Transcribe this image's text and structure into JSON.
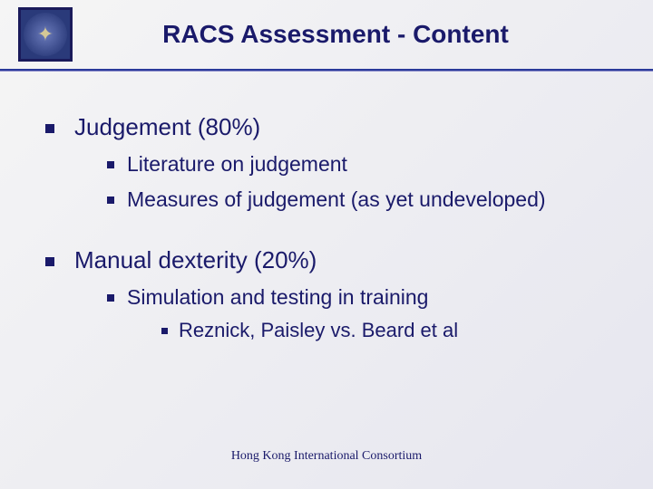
{
  "slide": {
    "title": "RACS Assessment - Content",
    "title_fontsize": 28,
    "title_color": "#1a1a6a",
    "divider_color": "#2a3a9a",
    "background_gradient": [
      "#f5f5f5",
      "#e6e6ef"
    ],
    "bullets": {
      "level1_size": 10,
      "level2_size": 8,
      "level3_size": 7,
      "color": "#1a1a6a"
    },
    "text_colors": {
      "level1": "#1a1a6a",
      "level2": "#1a1a6a",
      "level3": "#1a1a6a"
    },
    "font_sizes": {
      "level1": 26,
      "level2": 23,
      "level3": 22
    },
    "items": [
      {
        "label": "Judgement (80%)",
        "children": [
          {
            "label": "Literature on judgement"
          },
          {
            "label": "Measures of judgement (as yet undeveloped)"
          }
        ]
      },
      {
        "label": "Manual dexterity (20%)",
        "children": [
          {
            "label": "Simulation and testing in training",
            "children": [
              {
                "label": "Reznick, Paisley vs. Beard et al"
              }
            ]
          }
        ]
      }
    ],
    "footer": "Hong Kong International Consortium",
    "footer_fontsize": 14
  },
  "logo": {
    "bg_color": "#2a3a7a",
    "border_color": "#1a1a5a",
    "figure_glyph": "✦"
  }
}
